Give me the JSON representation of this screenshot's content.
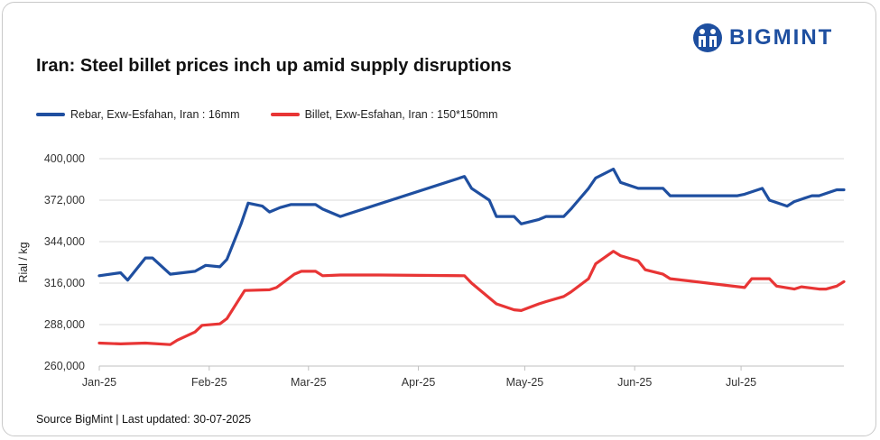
{
  "header": {
    "title": "Iran: Steel billet prices inch up amid supply disruptions",
    "brand": "BIGMINT",
    "logo_icon": "bigmint-logo-icon"
  },
  "footer": {
    "source": "Source BigMint | Last updated: 30-07-2025"
  },
  "colors": {
    "rebar": "#1f4fa0",
    "billet": "#e83535",
    "grid": "#d9d9d9"
  },
  "chart_data": {
    "type": "line",
    "title": "Iran: Steel billet prices inch up amid supply disruptions",
    "xlabel": "",
    "ylabel": "Rial / kg",
    "ylim": [
      260000,
      400000
    ],
    "yticks": [
      260000,
      288000,
      316000,
      344000,
      372000,
      400000
    ],
    "ytick_labels": [
      "260,000",
      "288,000",
      "316,000",
      "344,000",
      "372,000",
      "400,000"
    ],
    "x_dates": [
      "2025-01-01",
      "2025-02-01",
      "2025-03-01",
      "2025-04-01",
      "2025-05-01",
      "2025-06-01",
      "2025-07-01"
    ],
    "xtick_labels": [
      "Jan-25",
      "Feb-25",
      "Mar-25",
      "Apr-25",
      "May-25",
      "Jun-25",
      "Jul-25"
    ],
    "xlim": [
      "2025-01-01",
      "2025-07-30"
    ],
    "legend_position": "top-left",
    "grid": true,
    "series": [
      {
        "name": "Rebar, Exw-Esfahan, Iran : 16mm",
        "points": [
          [
            "2025-01-01",
            321000
          ],
          [
            "2025-01-07",
            323000
          ],
          [
            "2025-01-09",
            318000
          ],
          [
            "2025-01-14",
            333000
          ],
          [
            "2025-01-16",
            333000
          ],
          [
            "2025-01-21",
            322000
          ],
          [
            "2025-01-28",
            324000
          ],
          [
            "2025-01-31",
            328000
          ],
          [
            "2025-02-04",
            327000
          ],
          [
            "2025-02-06",
            332000
          ],
          [
            "2025-02-10",
            356000
          ],
          [
            "2025-02-12",
            370000
          ],
          [
            "2025-02-16",
            368000
          ],
          [
            "2025-02-18",
            364000
          ],
          [
            "2025-02-21",
            367000
          ],
          [
            "2025-02-24",
            369000
          ],
          [
            "2025-02-28",
            369000
          ],
          [
            "2025-03-03",
            369000
          ],
          [
            "2025-03-05",
            366000
          ],
          [
            "2025-03-10",
            361000
          ],
          [
            "2025-04-14",
            388000
          ],
          [
            "2025-04-16",
            380000
          ],
          [
            "2025-04-21",
            372000
          ],
          [
            "2025-04-23",
            361000
          ],
          [
            "2025-04-28",
            361000
          ],
          [
            "2025-04-30",
            356000
          ],
          [
            "2025-05-05",
            359000
          ],
          [
            "2025-05-07",
            361000
          ],
          [
            "2025-05-12",
            361000
          ],
          [
            "2025-05-14",
            366000
          ],
          [
            "2025-05-19",
            380000
          ],
          [
            "2025-05-21",
            387000
          ],
          [
            "2025-05-26",
            393000
          ],
          [
            "2025-05-28",
            384000
          ],
          [
            "2025-06-02",
            380000
          ],
          [
            "2025-06-09",
            380000
          ],
          [
            "2025-06-11",
            375000
          ],
          [
            "2025-06-30",
            375000
          ],
          [
            "2025-07-02",
            376000
          ],
          [
            "2025-07-07",
            380000
          ],
          [
            "2025-07-09",
            372000
          ],
          [
            "2025-07-14",
            368000
          ],
          [
            "2025-07-16",
            371000
          ],
          [
            "2025-07-21",
            375000
          ],
          [
            "2025-07-23",
            375000
          ],
          [
            "2025-07-28",
            379000
          ],
          [
            "2025-07-30",
            379000
          ]
        ]
      },
      {
        "name": "Billet, Exw-Esfahan, Iran : 150*150mm",
        "points": [
          [
            "2025-01-01",
            275500
          ],
          [
            "2025-01-07",
            275000
          ],
          [
            "2025-01-14",
            275500
          ],
          [
            "2025-01-21",
            274500
          ],
          [
            "2025-01-23",
            277500
          ],
          [
            "2025-01-28",
            283000
          ],
          [
            "2025-01-30",
            287500
          ],
          [
            "2025-02-04",
            288500
          ],
          [
            "2025-02-06",
            292000
          ],
          [
            "2025-02-11",
            311000
          ],
          [
            "2025-02-18",
            311500
          ],
          [
            "2025-02-20",
            313000
          ],
          [
            "2025-02-25",
            322000
          ],
          [
            "2025-02-27",
            324000
          ],
          [
            "2025-03-03",
            324000
          ],
          [
            "2025-03-05",
            321000
          ],
          [
            "2025-03-10",
            321500
          ],
          [
            "2025-03-21",
            321500
          ],
          [
            "2025-04-14",
            321000
          ],
          [
            "2025-04-16",
            316000
          ],
          [
            "2025-04-21",
            306000
          ],
          [
            "2025-04-23",
            302000
          ],
          [
            "2025-04-28",
            298000
          ],
          [
            "2025-04-30",
            297500
          ],
          [
            "2025-05-05",
            302000
          ],
          [
            "2025-05-07",
            303500
          ],
          [
            "2025-05-12",
            307000
          ],
          [
            "2025-05-14",
            310000
          ],
          [
            "2025-05-19",
            319000
          ],
          [
            "2025-05-21",
            329000
          ],
          [
            "2025-05-26",
            337500
          ],
          [
            "2025-05-28",
            334500
          ],
          [
            "2025-06-02",
            331000
          ],
          [
            "2025-06-04",
            325000
          ],
          [
            "2025-06-09",
            322000
          ],
          [
            "2025-06-11",
            319000
          ],
          [
            "2025-07-02",
            313000
          ],
          [
            "2025-07-04",
            319000
          ],
          [
            "2025-07-09",
            319000
          ],
          [
            "2025-07-11",
            314000
          ],
          [
            "2025-07-16",
            312000
          ],
          [
            "2025-07-18",
            313500
          ],
          [
            "2025-07-23",
            312000
          ],
          [
            "2025-07-25",
            312000
          ],
          [
            "2025-07-28",
            314000
          ],
          [
            "2025-07-30",
            317000
          ]
        ]
      }
    ]
  }
}
